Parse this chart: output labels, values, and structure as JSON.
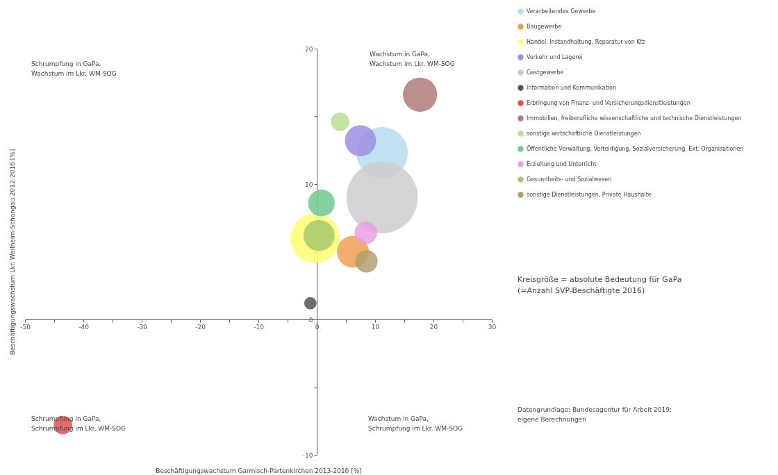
{
  "chart_data": {
    "type": "bubble",
    "xlabel": "Beschäftigungswachstum Garmisch-Partenkirchen 2013-2016 [%]",
    "ylabel": "Beschäftigungswachstum Lkr. Weilheim-Schongau 2012-2016 [%]",
    "xlim": [
      -50,
      30
    ],
    "ylim": [
      -10,
      20
    ],
    "xticks": [
      -50,
      {
        "value": -45,
        "label": null
      },
      -40,
      {
        "value": -35,
        "label": null
      },
      -30,
      {
        "value": -25,
        "label": null
      },
      -20,
      {
        "value": -15,
        "label": null
      },
      -10,
      {
        "value": -5,
        "label": null
      },
      0,
      {
        "value": 5,
        "label": null
      },
      10,
      {
        "value": 15,
        "label": null
      },
      20,
      {
        "value": 25,
        "label": null
      },
      30
    ],
    "yticks": [
      -10,
      {
        "value": -5,
        "label": null
      },
      0,
      {
        "value": 5,
        "label": null
      },
      10,
      {
        "value": 15,
        "label": null
      },
      20
    ],
    "grid": false,
    "legend": "top right",
    "series": [
      {
        "name": "Verarbeitendes Gewerbe",
        "color": "#b5dcec",
        "x": [
          11.2
        ],
        "values": [
          12.3
        ],
        "sizes": [
          0.52
        ]
      },
      {
        "name": "Baugewerbe",
        "color": "#f0a050",
        "x": [
          6.2
        ],
        "values": [
          5.0
        ],
        "sizes": [
          0.2
        ]
      },
      {
        "name": "Handel, Instandhaltung, Reparatur von Kfz",
        "color": "#ffff70",
        "x": [
          -0.3
        ],
        "values": [
          6.0
        ],
        "sizes": [
          0.48
        ]
      },
      {
        "name": "Verkehr und Lagerei",
        "color": "#9b8fe0",
        "x": [
          7.5
        ],
        "values": [
          13.2
        ],
        "sizes": [
          0.19
        ]
      },
      {
        "name": "Gastgewerbe",
        "color": "#cccccc",
        "x": [
          11.2
        ],
        "values": [
          9.0
        ],
        "sizes": [
          1
        ]
      },
      {
        "name": "Information und Kommunikation",
        "color": "#555555",
        "x": [
          -1.1
        ],
        "values": [
          1.2
        ],
        "sizes": [
          0.03
        ]
      },
      {
        "name": "Erbringung von Finanz- und Versicherungsdienstleistungen",
        "color": "#e05050",
        "x": [
          -43.5
        ],
        "values": [
          -7.8
        ],
        "sizes": [
          0.067
        ]
      },
      {
        "name": "Immobilien, freiberufliche wissenschaftliche und technische Dienstleistungen",
        "color": "#b07a7a",
        "x": [
          17.7
        ],
        "values": [
          16.6
        ],
        "sizes": [
          0.23
        ]
      },
      {
        "name": "sonstige wirtschaftliche Dienstleistungen",
        "color": "#b8e090",
        "x": [
          4.0
        ],
        "values": [
          14.6
        ],
        "sizes": [
          0.067
        ]
      },
      {
        "name": "Öffentliche Verwaltung, Verteidigung, Sozialversicherung, Ext. Organisationen",
        "color": "#70c890",
        "x": [
          0.8
        ],
        "values": [
          8.6
        ],
        "sizes": [
          0.14
        ]
      },
      {
        "name": "Erziehung und Unterricht",
        "color": "#e8a0e0",
        "x": [
          8.4
        ],
        "values": [
          6.4
        ],
        "sizes": [
          0.1
        ]
      },
      {
        "name": "Gesundheits- und Sozialwesen",
        "color": "#a8c870",
        "x": [
          0.4
        ],
        "values": [
          6.2
        ],
        "sizes": [
          0.19
        ]
      },
      {
        "name": "sonstige Dienstleistungen, Private Haushalte",
        "color": "#b0a070",
        "x": [
          8.5
        ],
        "values": [
          4.3
        ],
        "sizes": [
          0.1
        ]
      }
    ],
    "annotations": [
      "Schrumpfung in GaPa,\nWachstum im Lkr. WM-SOG",
      "Wachstum in GaPa,\nWachstum im Lkr. WM-SOG",
      "Schrumpfung in GaPa,\nSchrumpfung im Lkr. WM-SOG",
      "Wachstum in GaPa,\nSchrumpfung im Lkr. WM-SOG",
      "Kreisgröße = absolute Bedeutung für GaPa\n(=Anzahl SVP-Beschäftigte 2016)",
      "Datengrundlage: Bundesagentur für Arbeit 2019;\neigene Berechnungen"
    ]
  }
}
